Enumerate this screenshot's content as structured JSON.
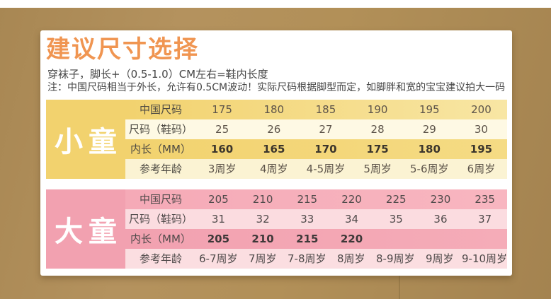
{
  "header": {
    "title": "建议尺寸选择",
    "tip": "穿袜子，脚长+（0.5-1.0）CM左右=鞋内长度",
    "note": "注：中国尺码相当于外长，允许有0.5CM波动！实际尺码根据脚型而定，如脚胖和宽的宝宝建议拍大一码"
  },
  "colors": {
    "title_orange": "#F09551",
    "background_tan": "#B2905C",
    "panel_white": "#FFFFFF",
    "small_child_yellow": "#F2D26E",
    "small_child_cream": "#FEF9E4",
    "big_child_pink": "#F2A1B0",
    "big_child_light_pink": "#FBDCE0"
  },
  "size_tables": [
    {
      "id": "small-child",
      "group_label": "小童",
      "theme": "yellow",
      "rows": [
        {
          "label": "中国尺码",
          "emphasis": false,
          "values": [
            "175",
            "180",
            "185",
            "190",
            "195",
            "200"
          ]
        },
        {
          "label": "尺码（鞋码）",
          "emphasis": false,
          "values": [
            "25",
            "26",
            "27",
            "28",
            "29",
            "30"
          ]
        },
        {
          "label": "内长（MM）",
          "emphasis": true,
          "values": [
            "160",
            "165",
            "170",
            "175",
            "180",
            "195"
          ]
        },
        {
          "label": "参考年龄",
          "emphasis": false,
          "values": [
            "3周岁",
            "4周岁",
            "4-5周岁",
            "5周岁",
            "5-6周岁",
            "6周岁"
          ]
        }
      ]
    },
    {
      "id": "big-child",
      "group_label": "大童",
      "theme": "pink",
      "rows": [
        {
          "label": "中国尺码",
          "emphasis": false,
          "values": [
            "205",
            "210",
            "215",
            "220",
            "225",
            "230",
            "235"
          ]
        },
        {
          "label": "尺码（鞋码）",
          "emphasis": false,
          "values": [
            "31",
            "32",
            "33",
            "34",
            "35",
            "36",
            "37"
          ]
        },
        {
          "label": "内长（MM）",
          "emphasis": true,
          "values": [
            "205",
            "210",
            "215",
            "220",
            "",
            "",
            ""
          ]
        },
        {
          "label": "参考年龄",
          "emphasis": false,
          "values": [
            "6-7周岁",
            "7周岁",
            "7-8周岁",
            "8周岁",
            "8-9周岁",
            "9周岁",
            "9-10周岁"
          ]
        }
      ]
    }
  ]
}
